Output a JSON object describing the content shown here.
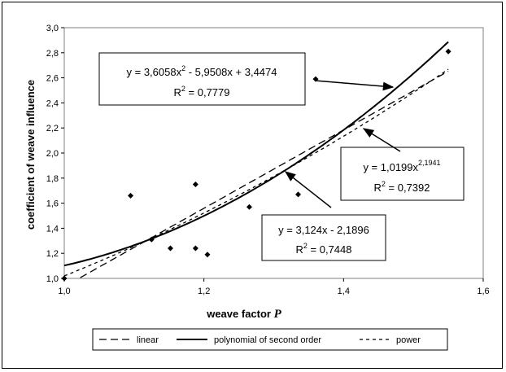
{
  "chart_data": {
    "type": "scatter",
    "xlabel": "weave factor",
    "xlabel_symbol": "P",
    "ylabel": "coefficient of weave influence",
    "xlim": [
      1.0,
      1.6
    ],
    "ylim": [
      1.0,
      3.0
    ],
    "x_ticks": [
      "1,0",
      "1,2",
      "1,4",
      "1,6"
    ],
    "y_ticks": [
      "1,0",
      "1,2",
      "1,4",
      "1,6",
      "1,8",
      "2,0",
      "2,2",
      "2,4",
      "2,6",
      "2,8",
      "3,0"
    ],
    "grid": false,
    "legend_position": "bottom",
    "points": [
      {
        "x": 1.0,
        "y": 1.0
      },
      {
        "x": 1.095,
        "y": 1.66
      },
      {
        "x": 1.125,
        "y": 1.31
      },
      {
        "x": 1.152,
        "y": 1.24
      },
      {
        "x": 1.188,
        "y": 1.75
      },
      {
        "x": 1.188,
        "y": 1.24
      },
      {
        "x": 1.205,
        "y": 1.19
      },
      {
        "x": 1.265,
        "y": 1.57
      },
      {
        "x": 1.335,
        "y": 1.67
      },
      {
        "x": 1.36,
        "y": 2.59
      },
      {
        "x": 1.55,
        "y": 2.81
      }
    ],
    "series": [
      {
        "name": "linear",
        "type": "linear",
        "a": 3.124,
        "b": -2.1896,
        "style": "dashed"
      },
      {
        "name": "polynomial of second order",
        "type": "polynomial",
        "a2": 3.6058,
        "a1": -5.9508,
        "a0": 3.4474,
        "style": "solid"
      },
      {
        "name": "power",
        "type": "power",
        "a": 1.0199,
        "b": 2.1941,
        "style": "dotted"
      }
    ],
    "annotations": {
      "poly": {
        "eq": "y = 3,6058x",
        "exp": "2",
        "eq_rest": " - 5,9508x + 3,4474",
        "r2_label": "R",
        "r2_exp": "2",
        "r2_value": " = 0,7779"
      },
      "power": {
        "eq": "y = 1,0199x",
        "exp": "2,1941",
        "r2_label": "R",
        "r2_exp": "2",
        "r2_value": " = 0,7392"
      },
      "linear": {
        "eq": "y = 3,124x - 2,1896",
        "r2_label": "R",
        "r2_exp": "2",
        "r2_value": " = 0,7448"
      }
    }
  }
}
